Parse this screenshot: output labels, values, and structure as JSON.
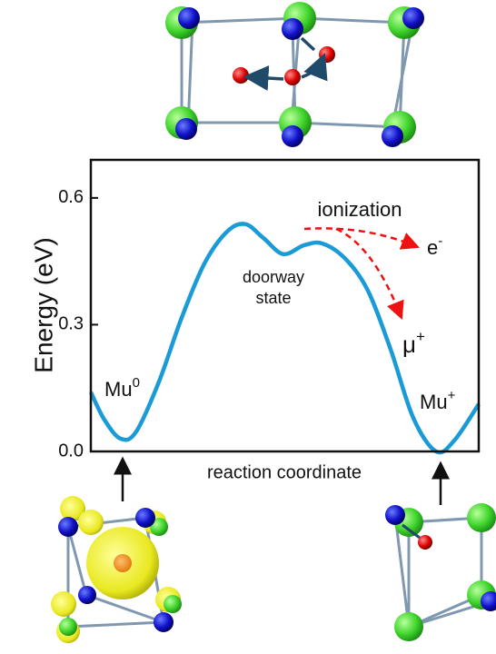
{
  "chart_data": {
    "type": "line",
    "ylabel": "Energy (eV)",
    "xlabel": "reaction coordinate",
    "x": [
      0,
      0.035,
      0.077,
      0.117,
      0.176,
      0.234,
      0.293,
      0.351,
      0.398,
      0.445,
      0.496,
      0.55,
      0.597,
      0.656,
      0.714,
      0.773,
      0.831,
      0.89,
      0.937,
      1.0
    ],
    "xlim": [
      0,
      1
    ],
    "series": [
      {
        "color": "#1a9bd7",
        "values": [
          0.14,
          0.075,
          0.03,
          0.047,
          0.166,
          0.316,
          0.445,
          0.52,
          0.538,
          0.505,
          0.467,
          0.488,
          0.492,
          0.456,
          0.381,
          0.241,
          0.08,
          0.0,
          0.026,
          0.112
        ]
      }
    ],
    "ylim": [
      0,
      0.69
    ],
    "yticks": [
      {
        "value": 0,
        "label": "0.0"
      },
      {
        "value": 0.3,
        "label": "0.3"
      },
      {
        "value": 0.6,
        "label": "0.6"
      }
    ],
    "annotations": {
      "mu0": {
        "text": "Mu",
        "sup": "0"
      },
      "muplus": {
        "text": "Mu",
        "sup": "+"
      },
      "muon": {
        "text": "μ",
        "sup": "+"
      },
      "electron": {
        "text": "e",
        "sup": "-"
      },
      "ionization": "ionization",
      "doorway": [
        "doorway",
        "state"
      ]
    }
  }
}
